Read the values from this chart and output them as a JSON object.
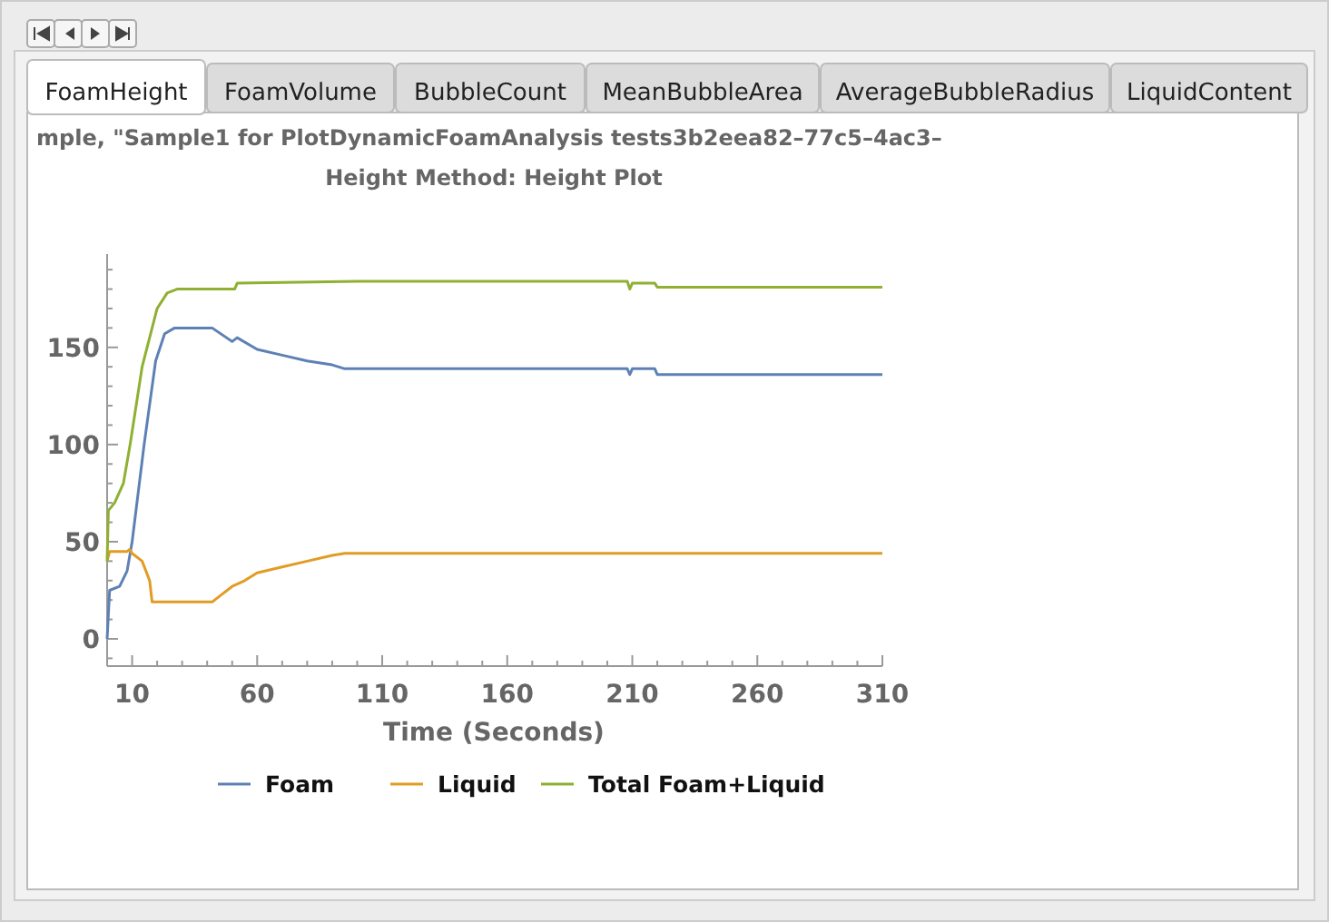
{
  "chart_data": {
    "type": "line",
    "title": "mple, \"Sample1 for PlotDynamicFoamAnalysis tests3b2eea82–77c5–4ac3–",
    "subtitle": "Height Method: Height Plot",
    "xlabel": "Time  (Seconds)",
    "annotations": [
      "FoamHeight",
      "FoamVolume",
      "BubbleCount",
      "MeanBubbleArea",
      "AverageBubbleRadius",
      "LiquidContent"
    ],
    "xlim": [
      0,
      310
    ],
    "ylim": [
      -14,
      198
    ],
    "xticks": [
      {
        "value": 0,
        "label": null
      },
      10,
      {
        "value": 20,
        "label": null
      },
      {
        "value": 30,
        "label": null
      },
      {
        "value": 40,
        "label": null
      },
      {
        "value": 50,
        "label": null
      },
      60,
      {
        "value": 70,
        "label": null
      },
      {
        "value": 80,
        "label": null
      },
      {
        "value": 90,
        "label": null
      },
      {
        "value": 100,
        "label": null
      },
      110,
      {
        "value": 120,
        "label": null
      },
      {
        "value": 130,
        "label": null
      },
      {
        "value": 140,
        "label": null
      },
      {
        "value": 150,
        "label": null
      },
      160,
      {
        "value": 170,
        "label": null
      },
      {
        "value": 180,
        "label": null
      },
      {
        "value": 190,
        "label": null
      },
      {
        "value": 200,
        "label": null
      },
      210,
      {
        "value": 220,
        "label": null
      },
      {
        "value": 230,
        "label": null
      },
      {
        "value": 240,
        "label": null
      },
      {
        "value": 250,
        "label": null
      },
      260,
      {
        "value": 270,
        "label": null
      },
      {
        "value": 280,
        "label": null
      },
      {
        "value": 290,
        "label": null
      },
      {
        "value": 300,
        "label": null
      },
      310
    ],
    "yticks": [
      {
        "value": -10,
        "label": null
      },
      0,
      {
        "value": 10,
        "label": null
      },
      {
        "value": 20,
        "label": null
      },
      {
        "value": 30,
        "label": null
      },
      {
        "value": 40,
        "label": null
      },
      50,
      {
        "value": 60,
        "label": null
      },
      {
        "value": 70,
        "label": null
      },
      {
        "value": 80,
        "label": null
      },
      {
        "value": 90,
        "label": null
      },
      100,
      {
        "value": 110,
        "label": null
      },
      {
        "value": 120,
        "label": null
      },
      {
        "value": 130,
        "label": null
      },
      {
        "value": 140,
        "label": null
      },
      150,
      {
        "value": 160,
        "label": null
      },
      {
        "value": 170,
        "label": null
      },
      {
        "value": 180,
        "label": null
      },
      {
        "value": 190,
        "label": null
      }
    ],
    "grid": false,
    "legend": "bottom",
    "marker": "none",
    "line_style": "solid",
    "series": [
      {
        "name": "Foam",
        "color": "#5e81b5",
        "x": [
          0,
          1,
          5,
          8,
          10,
          14.8,
          19.4,
          23,
          27,
          42,
          50,
          52,
          60,
          70,
          80,
          90,
          95,
          208,
          209,
          210,
          219,
          220,
          310
        ],
        "values": [
          0,
          25,
          27,
          35,
          50,
          100,
          143,
          157,
          160,
          160,
          153,
          155,
          149,
          146,
          143,
          141,
          139,
          139,
          136,
          139,
          139,
          136,
          136
        ]
      },
      {
        "name": "Liquid",
        "color": "#e19c24",
        "x": [
          0,
          1,
          8,
          9,
          10,
          14,
          17,
          18,
          42,
          45,
          50,
          55,
          60,
          70,
          80,
          90,
          95,
          310
        ],
        "values": [
          40,
          45,
          45,
          46,
          44,
          40,
          30,
          19,
          19,
          22,
          27,
          30,
          34,
          37,
          40,
          43,
          44,
          44
        ]
      },
      {
        "name": "Total Foam+Liquid",
        "color": "#8fb032",
        "x": [
          0,
          0.5,
          3,
          6.5,
          9.2,
          14,
          20,
          24,
          28,
          51,
          52,
          100,
          208,
          209,
          210,
          219,
          220,
          310
        ],
        "values": [
          40,
          66,
          70,
          80,
          100,
          140,
          170,
          178,
          180,
          180,
          183,
          184,
          184,
          180,
          183,
          183,
          181,
          181
        ]
      }
    ]
  }
}
